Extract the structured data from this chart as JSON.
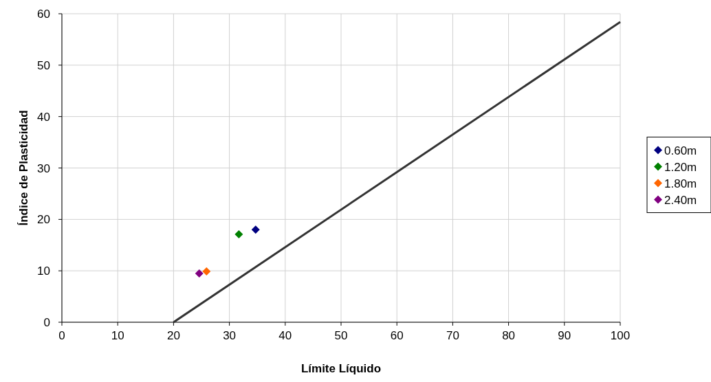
{
  "chart_data": {
    "type": "scatter",
    "xlabel": "Límite Líquido",
    "ylabel": "Índice de Plasticidad",
    "xlim": [
      0,
      100
    ],
    "ylim": [
      0,
      60
    ],
    "xticks": [
      0,
      10,
      20,
      30,
      40,
      50,
      60,
      70,
      80,
      90,
      100
    ],
    "yticks": [
      0,
      10,
      20,
      30,
      40,
      50,
      60
    ],
    "grid": true,
    "legend": "right",
    "marker": "diamond",
    "series": [
      {
        "type": "line",
        "color": "#333333",
        "x": [
          20,
          100
        ],
        "values": [
          0,
          58.4
        ],
        "marker": "none",
        "line_style": "solid"
      },
      {
        "name": "0.60m",
        "color": "#000080",
        "x": [
          34.7
        ],
        "values": [
          18.0
        ]
      },
      {
        "name": "1.20m",
        "color": "#008000",
        "x": [
          31.7
        ],
        "values": [
          17.1
        ]
      },
      {
        "name": "1.80m",
        "color": "#ff6600",
        "x": [
          25.9
        ],
        "values": [
          9.9
        ]
      },
      {
        "name": "2.40m",
        "color": "#800080",
        "x": [
          24.6
        ],
        "values": [
          9.5
        ]
      }
    ]
  }
}
